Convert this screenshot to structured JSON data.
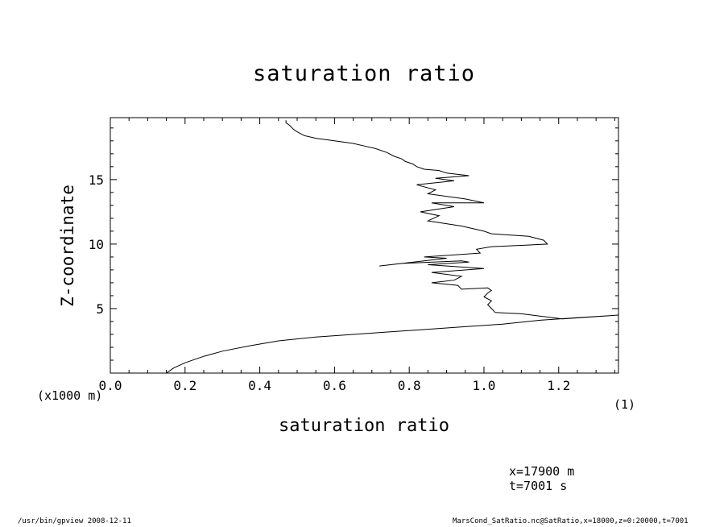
{
  "chart_data": {
    "type": "line",
    "title": "saturation ratio",
    "xlabel": "saturation ratio",
    "ylabel": "Z-coordinate",
    "y_unit_label": "(x1000 m)",
    "x_unit_label": "(1)",
    "xlim": [
      0.0,
      1.36
    ],
    "ylim": [
      0,
      19.8
    ],
    "x_ticks": [
      0.0,
      0.2,
      0.4,
      0.6,
      0.8,
      1.0,
      1.2
    ],
    "x_tick_labels": [
      "0.0",
      "0.2",
      "0.4",
      "0.6",
      "0.8",
      "1.0",
      "1.2"
    ],
    "y_ticks": [
      5,
      10,
      15
    ],
    "y_tick_labels": [
      "5",
      "10",
      "15"
    ],
    "grid": false,
    "series": [
      {
        "x": [
          0.15,
          0.17,
          0.2,
          0.25,
          0.3,
          0.37,
          0.45,
          0.55,
          0.65,
          0.75,
          0.85,
          0.95,
          1.05,
          1.15,
          1.25,
          1.36,
          1.21,
          1.1,
          1.03,
          1.02,
          1.01,
          1.02,
          1.0,
          1.01,
          1.02,
          1.01,
          0.94,
          0.93,
          0.86,
          0.92,
          0.94,
          0.86,
          1.0,
          0.85,
          0.96,
          0.94,
          0.78,
          0.72,
          0.9,
          0.84,
          0.99,
          0.98,
          1.02,
          1.1,
          1.17,
          1.16,
          1.12,
          1.02,
          1.0,
          0.94,
          0.85,
          0.88,
          0.83,
          0.92,
          0.86,
          1.0,
          0.95,
          0.85,
          0.87,
          0.82,
          0.92,
          0.87,
          0.96,
          0.9,
          0.88,
          0.84,
          0.82,
          0.81,
          0.79,
          0.78,
          0.76,
          0.74,
          0.71,
          0.68,
          0.65,
          0.6,
          0.55,
          0.52,
          0.5,
          0.49,
          0.48,
          0.47,
          0.47
        ],
        "y": [
          0.0,
          0.4,
          0.8,
          1.3,
          1.7,
          2.1,
          2.5,
          2.8,
          3.0,
          3.2,
          3.4,
          3.6,
          3.8,
          4.1,
          4.3,
          4.5,
          4.2,
          4.6,
          4.7,
          5.0,
          5.3,
          5.6,
          5.9,
          6.2,
          6.4,
          6.6,
          6.5,
          6.8,
          7.0,
          7.2,
          7.5,
          7.8,
          8.1,
          8.4,
          8.6,
          8.7,
          8.5,
          8.3,
          8.9,
          9.0,
          9.3,
          9.6,
          9.8,
          9.9,
          10.0,
          10.3,
          10.6,
          10.8,
          11.0,
          11.4,
          11.8,
          12.2,
          12.5,
          12.9,
          13.2,
          13.2,
          13.5,
          13.9,
          14.2,
          14.6,
          14.9,
          15.1,
          15.3,
          15.5,
          15.7,
          15.8,
          16.0,
          16.2,
          16.4,
          16.6,
          16.8,
          17.1,
          17.4,
          17.6,
          17.8,
          18.0,
          18.2,
          18.4,
          18.7,
          18.9,
          19.2,
          19.4,
          19.6
        ]
      }
    ]
  },
  "info": {
    "position": "x=17900  m",
    "time": "t=7001  s"
  },
  "footer": {
    "left": "/usr/bin/gpview   2008-12-11",
    "right": "MarsCond_SatRatio.nc@SatRatio,x=18000,z=0:20000,t=7001"
  }
}
